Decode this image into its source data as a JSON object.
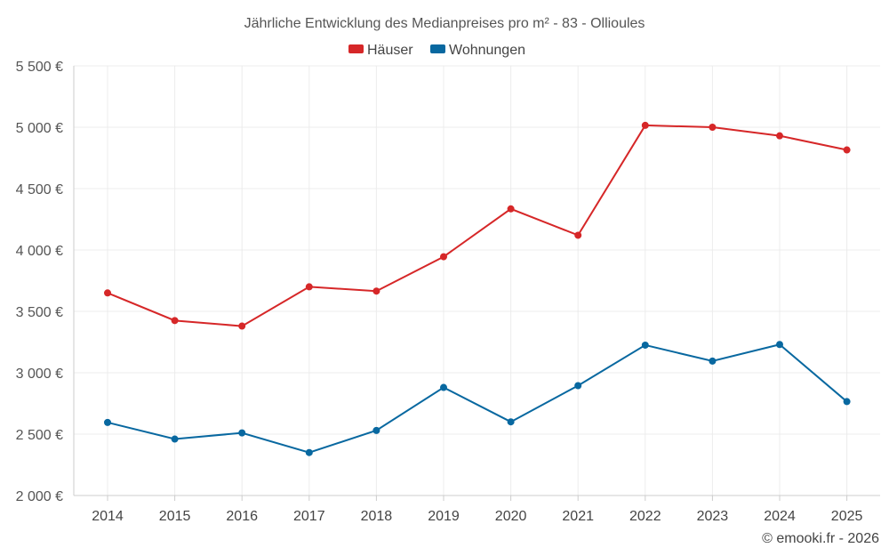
{
  "chart_data": {
    "type": "line",
    "title": "Jährliche Entwicklung des Medianpreises pro m² - 83 - Ollioules",
    "categories": [
      "2014",
      "2015",
      "2016",
      "2017",
      "2018",
      "2019",
      "2020",
      "2021",
      "2022",
      "2023",
      "2024",
      "2025"
    ],
    "series": [
      {
        "name": "Häuser",
        "color": "#d62728",
        "values": [
          3650,
          3425,
          3380,
          3700,
          3665,
          3945,
          4335,
          4120,
          5015,
          5000,
          4930,
          4815
        ]
      },
      {
        "name": "Wohnungen",
        "color": "#0868a0",
        "values": [
          2595,
          2460,
          2510,
          2350,
          2530,
          2880,
          2600,
          2895,
          3225,
          3095,
          3230,
          2765
        ]
      }
    ],
    "ylim": [
      2000,
      5500
    ],
    "yticks": [
      2000,
      2500,
      3000,
      3500,
      4000,
      4500,
      5000,
      5500
    ],
    "ytick_labels": [
      "2 000 €",
      "2 500 €",
      "3 000 €",
      "3 500 €",
      "4 000 €",
      "4 500 €",
      "5 000 €",
      "5 500 €"
    ],
    "xlabel": "",
    "ylabel": "",
    "legend_position": "top-center",
    "grid": true
  },
  "credit": "© emooki.fr - 2026"
}
